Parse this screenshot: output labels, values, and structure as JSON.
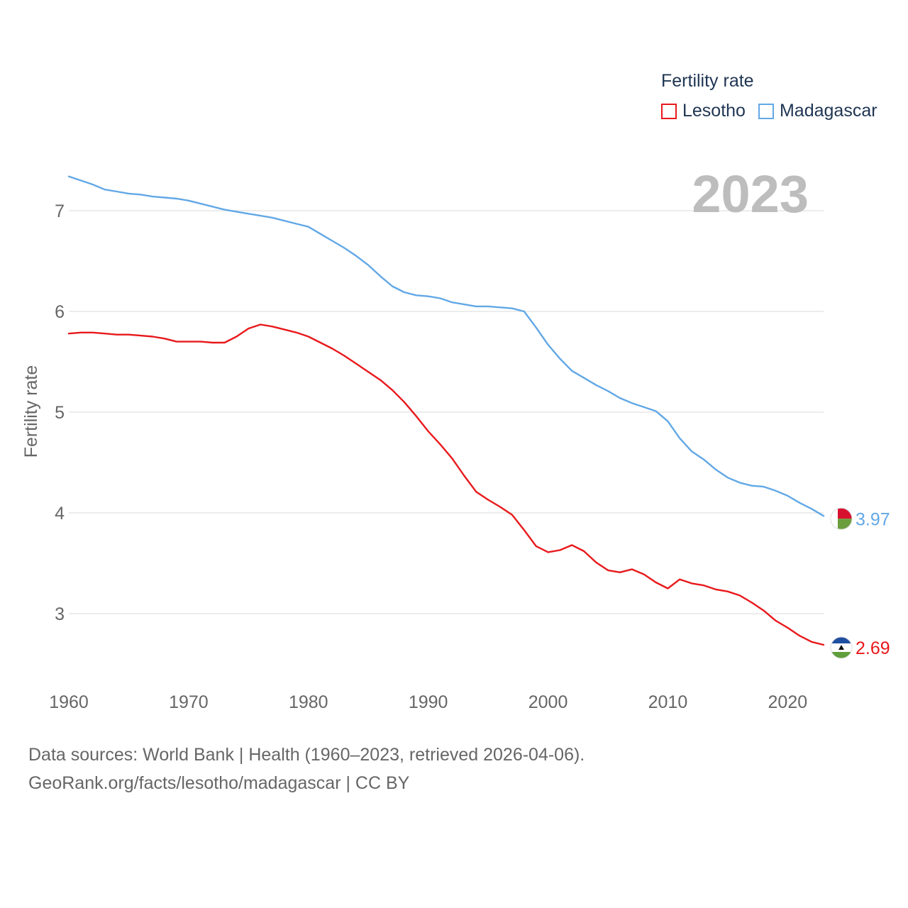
{
  "legend": {
    "title": "Fertility rate",
    "items": [
      {
        "label": "Lesotho",
        "color": "#e8191c"
      },
      {
        "label": "Madagascar",
        "color": "#62a8e6"
      }
    ]
  },
  "year_badge": "2023",
  "source": {
    "line1": "Data sources: World Bank | Health (1960–2023, retrieved 2026-04-06).",
    "line2": "GeoRank.org/facts/lesotho/madagascar | CC BY"
  },
  "chart_data": {
    "type": "line",
    "title": "",
    "xlabel": "",
    "ylabel": "Fertility rate",
    "xlim": [
      1960,
      2023
    ],
    "ylim": [
      2.5,
      7.5
    ],
    "x_ticks": [
      1960,
      1970,
      1980,
      1990,
      2000,
      2010,
      2020
    ],
    "y_ticks": [
      3,
      4,
      5,
      6,
      7
    ],
    "grid": true,
    "legend_position": "top-right",
    "x": [
      1960,
      1961,
      1962,
      1963,
      1964,
      1965,
      1966,
      1967,
      1968,
      1969,
      1970,
      1971,
      1972,
      1973,
      1974,
      1975,
      1976,
      1977,
      1978,
      1979,
      1980,
      1981,
      1982,
      1983,
      1984,
      1985,
      1986,
      1987,
      1988,
      1989,
      1990,
      1991,
      1992,
      1993,
      1994,
      1995,
      1996,
      1997,
      1998,
      1999,
      2000,
      2001,
      2002,
      2003,
      2004,
      2005,
      2006,
      2007,
      2008,
      2009,
      2010,
      2011,
      2012,
      2013,
      2014,
      2015,
      2016,
      2017,
      2018,
      2019,
      2020,
      2021,
      2022,
      2023
    ],
    "series": [
      {
        "name": "Lesotho",
        "color": "#e8191c",
        "end_label": "2.69",
        "values": [
          5.78,
          5.79,
          5.79,
          5.78,
          5.77,
          5.77,
          5.76,
          5.75,
          5.73,
          5.7,
          5.7,
          5.7,
          5.69,
          5.69,
          5.75,
          5.83,
          5.87,
          5.85,
          5.82,
          5.79,
          5.75,
          5.69,
          5.63,
          5.56,
          5.48,
          5.4,
          5.32,
          5.22,
          5.1,
          4.96,
          4.81,
          4.68,
          4.54,
          4.37,
          4.21,
          4.13,
          4.06,
          3.98,
          3.83,
          3.67,
          3.61,
          3.63,
          3.68,
          3.62,
          3.51,
          3.43,
          3.41,
          3.44,
          3.39,
          3.31,
          3.25,
          3.34,
          3.3,
          3.28,
          3.24,
          3.22,
          3.18,
          3.11,
          3.03,
          2.93,
          2.86,
          2.78,
          2.72,
          2.69
        ]
      },
      {
        "name": "Madagascar",
        "color": "#62a8e6",
        "end_label": "3.97",
        "values": [
          7.34,
          7.3,
          7.26,
          7.21,
          7.19,
          7.17,
          7.16,
          7.14,
          7.13,
          7.12,
          7.1,
          7.07,
          7.04,
          7.01,
          6.99,
          6.97,
          6.95,
          6.93,
          6.9,
          6.87,
          6.84,
          6.77,
          6.7,
          6.63,
          6.55,
          6.46,
          6.35,
          6.25,
          6.19,
          6.16,
          6.15,
          6.13,
          6.09,
          6.07,
          6.05,
          6.05,
          6.04,
          6.03,
          6.0,
          5.84,
          5.67,
          5.53,
          5.41,
          5.34,
          5.27,
          5.21,
          5.14,
          5.09,
          5.05,
          5.01,
          4.91,
          4.74,
          4.61,
          4.53,
          4.43,
          4.35,
          4.3,
          4.27,
          4.26,
          4.22,
          4.17,
          4.1,
          4.04,
          3.97
        ]
      }
    ]
  }
}
